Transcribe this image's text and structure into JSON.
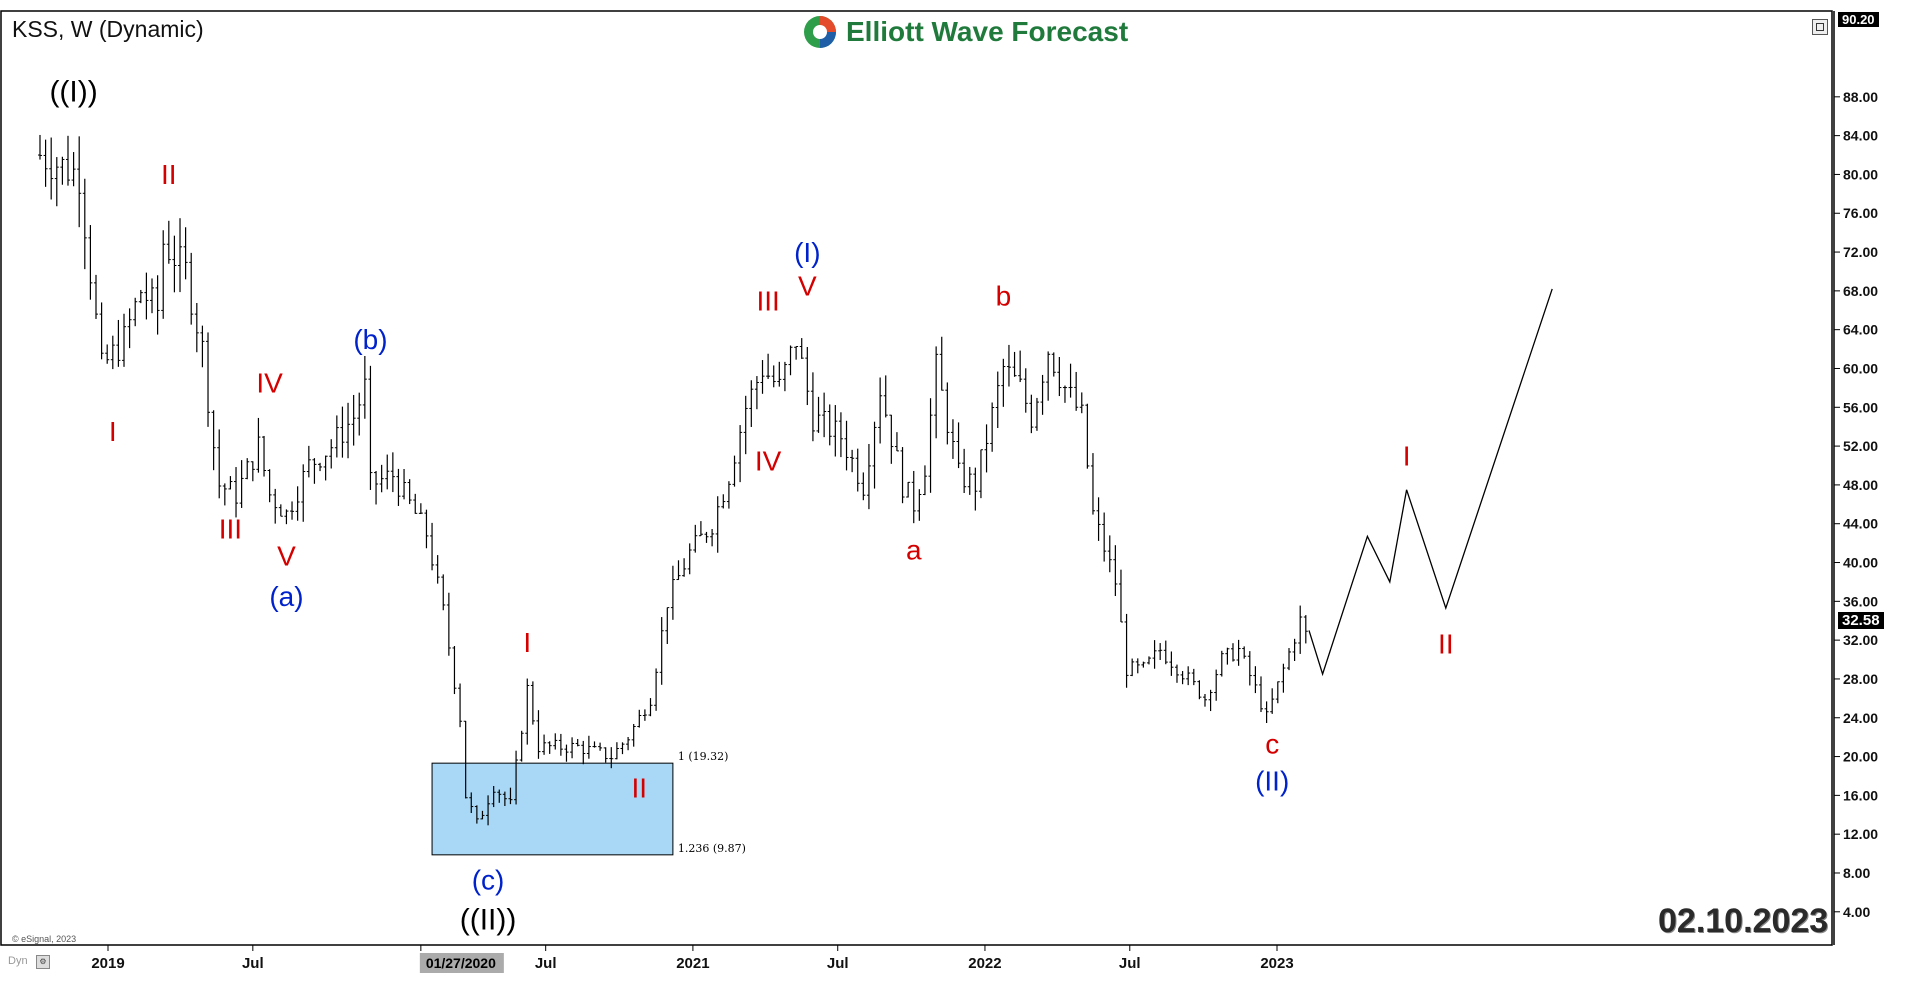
{
  "header": {
    "chart_title": "KSS, W (Dynamic)",
    "logo_text": "Elliott Wave Forecast"
  },
  "date_stamp": "02.10.2023",
  "copyright": "© eSignal, 2023",
  "dyn_label": "Dyn",
  "current_price_label": "32.58",
  "top_price_label": "90.20",
  "colors": {
    "bars": "#000000",
    "wave_red": "#d40000",
    "wave_blue": "#0022cc",
    "wave_black": "#000000",
    "zone_fill": "#a8d8f6",
    "logo_green": "#1f7a3c"
  },
  "chart_data": {
    "type": "ohlc_bar",
    "title": "KSS, W (Dynamic)",
    "ylim": [
      0,
      92
    ],
    "y_ticks": [
      4,
      8,
      12,
      16,
      20,
      24,
      28,
      32,
      36,
      40,
      44,
      48,
      52,
      56,
      60,
      64,
      68,
      72,
      76,
      80,
      84,
      88
    ],
    "x_ticks": [
      {
        "label": "2019",
        "date": "2019-01"
      },
      {
        "label": "Jul",
        "date": "2019-07"
      },
      {
        "label": "01/27/2020",
        "date": "2020-01-27",
        "highlight": true
      },
      {
        "label": "Jul",
        "date": "2020-07"
      },
      {
        "label": "2021",
        "date": "2021-01"
      },
      {
        "label": "Jul",
        "date": "2021-07"
      },
      {
        "label": "2022",
        "date": "2022-01"
      },
      {
        "label": "Jul",
        "date": "2022-07"
      },
      {
        "label": "2023",
        "date": "2023-01"
      }
    ],
    "price_keypoints": [
      [
        "2018-10-08",
        82
      ],
      [
        "2018-11-26",
        80
      ],
      [
        "2018-12-10",
        70
      ],
      [
        "2018-12-24",
        60
      ],
      [
        "2019-01-21",
        63
      ],
      [
        "2019-02-11",
        68
      ],
      [
        "2019-03-04",
        66
      ],
      [
        "2019-03-11",
        73
      ],
      [
        "2019-04-08",
        70
      ],
      [
        "2019-04-29",
        62
      ],
      [
        "2019-05-13",
        52
      ],
      [
        "2019-05-20",
        48
      ],
      [
        "2019-06-10",
        47
      ],
      [
        "2019-07-08",
        52
      ],
      [
        "2019-07-22",
        47
      ],
      [
        "2019-08-12",
        45
      ],
      [
        "2019-09-09",
        50
      ],
      [
        "2019-10-07",
        52
      ],
      [
        "2019-11-04",
        55
      ],
      [
        "2019-11-18",
        58
      ],
      [
        "2019-11-25",
        48
      ],
      [
        "2019-12-23",
        49
      ],
      [
        "2020-01-13",
        46
      ],
      [
        "2020-02-03",
        43
      ],
      [
        "2020-02-24",
        35
      ],
      [
        "2020-03-16",
        24
      ],
      [
        "2020-03-23",
        16
      ],
      [
        "2020-04-06",
        13
      ],
      [
        "2020-04-27",
        17
      ],
      [
        "2020-05-18",
        15
      ],
      [
        "2020-06-08",
        27
      ],
      [
        "2020-06-22",
        21
      ],
      [
        "2020-08-10",
        21
      ],
      [
        "2020-09-21",
        20
      ],
      [
        "2020-10-12",
        22
      ],
      [
        "2020-11-09",
        26
      ],
      [
        "2020-11-30",
        36
      ],
      [
        "2020-12-28",
        41
      ],
      [
        "2021-01-25",
        44
      ],
      [
        "2021-02-15",
        49
      ],
      [
        "2021-03-08",
        56
      ],
      [
        "2021-03-29",
        60
      ],
      [
        "2021-04-19",
        58
      ],
      [
        "2021-05-10",
        63
      ],
      [
        "2021-05-31",
        55
      ],
      [
        "2021-07-05",
        53
      ],
      [
        "2021-08-02",
        48
      ],
      [
        "2021-08-23",
        58
      ],
      [
        "2021-09-20",
        48
      ],
      [
        "2021-10-04",
        46
      ],
      [
        "2021-10-18",
        50
      ],
      [
        "2021-11-01",
        60
      ],
      [
        "2021-11-29",
        49
      ],
      [
        "2021-12-20",
        48
      ],
      [
        "2022-01-24",
        60
      ],
      [
        "2022-02-14",
        58
      ],
      [
        "2022-02-28",
        55
      ],
      [
        "2022-03-21",
        62
      ],
      [
        "2022-04-11",
        58
      ],
      [
        "2022-05-02",
        55
      ],
      [
        "2022-05-16",
        45
      ],
      [
        "2022-06-13",
        38
      ],
      [
        "2022-06-27",
        29
      ],
      [
        "2022-07-18",
        29
      ],
      [
        "2022-08-08",
        31
      ],
      [
        "2022-09-12",
        28
      ],
      [
        "2022-10-03",
        26
      ],
      [
        "2022-10-24",
        30
      ],
      [
        "2022-11-14",
        31
      ],
      [
        "2022-12-05",
        27
      ],
      [
        "2022-12-19",
        24
      ],
      [
        "2023-01-09",
        29
      ],
      [
        "2023-01-30",
        34
      ],
      [
        "2023-02-06",
        32.58
      ]
    ],
    "projection_path": [
      [
        "2023-02-10",
        33
      ],
      [
        "2023-02-27",
        28.5
      ],
      [
        "2023-04-24",
        42.7
      ],
      [
        "2023-05-22",
        38
      ],
      [
        "2023-06-12",
        47.5
      ],
      [
        "2023-07-31",
        35.3
      ],
      [
        "2023-12-11",
        68.2
      ]
    ],
    "fib_zone": {
      "x_start": "2020-02-10",
      "x_end": "2020-12-07",
      "upper": 19.32,
      "lower": 9.87,
      "upper_label": "1 (19.32)",
      "lower_label": "1.236 (9.87)"
    },
    "wave_labels": [
      {
        "text": "((I))",
        "date": "2018-11-19",
        "price": 87.5,
        "color": "black"
      },
      {
        "text": "I",
        "date": "2019-01-07",
        "price": 52.5,
        "color": "red"
      },
      {
        "text": "II",
        "date": "2019-03-18",
        "price": 79,
        "color": "red"
      },
      {
        "text": "III",
        "date": "2019-06-03",
        "price": 42.5,
        "color": "red"
      },
      {
        "text": "IV",
        "date": "2019-07-22",
        "price": 57.5,
        "color": "red"
      },
      {
        "text": "V",
        "date": "2019-08-12",
        "price": 39.7,
        "color": "red"
      },
      {
        "text": "(a)",
        "date": "2019-08-12",
        "price": 35.5,
        "color": "blue"
      },
      {
        "text": "(b)",
        "date": "2019-11-25",
        "price": 62,
        "color": "blue"
      },
      {
        "text": "I",
        "date": "2020-06-08",
        "price": 30.8,
        "color": "red"
      },
      {
        "text": "II",
        "date": "2020-10-26",
        "price": 15.8,
        "color": "red"
      },
      {
        "text": "(c)",
        "date": "2020-04-20",
        "price": 6.3,
        "color": "blue"
      },
      {
        "text": "((II))",
        "date": "2020-04-20",
        "price": 2.2,
        "color": "black"
      },
      {
        "text": "III",
        "date": "2021-04-05",
        "price": 66,
        "color": "red"
      },
      {
        "text": "IV",
        "date": "2021-04-05",
        "price": 49.5,
        "color": "red"
      },
      {
        "text": "V",
        "date": "2021-05-24",
        "price": 67.5,
        "color": "red"
      },
      {
        "text": "(I)",
        "date": "2021-05-24",
        "price": 71,
        "color": "blue"
      },
      {
        "text": "a",
        "date": "2021-10-04",
        "price": 40.3,
        "color": "red"
      },
      {
        "text": "b",
        "date": "2022-01-24",
        "price": 66.5,
        "color": "red"
      },
      {
        "text": "c",
        "date": "2022-12-26",
        "price": 20.3,
        "color": "red"
      },
      {
        "text": "(II)",
        "date": "2022-12-26",
        "price": 16.5,
        "color": "blue"
      },
      {
        "text": "I",
        "date": "2023-06-12",
        "price": 50,
        "color": "red"
      },
      {
        "text": "II",
        "date": "2023-07-31",
        "price": 30.6,
        "color": "red"
      }
    ]
  }
}
